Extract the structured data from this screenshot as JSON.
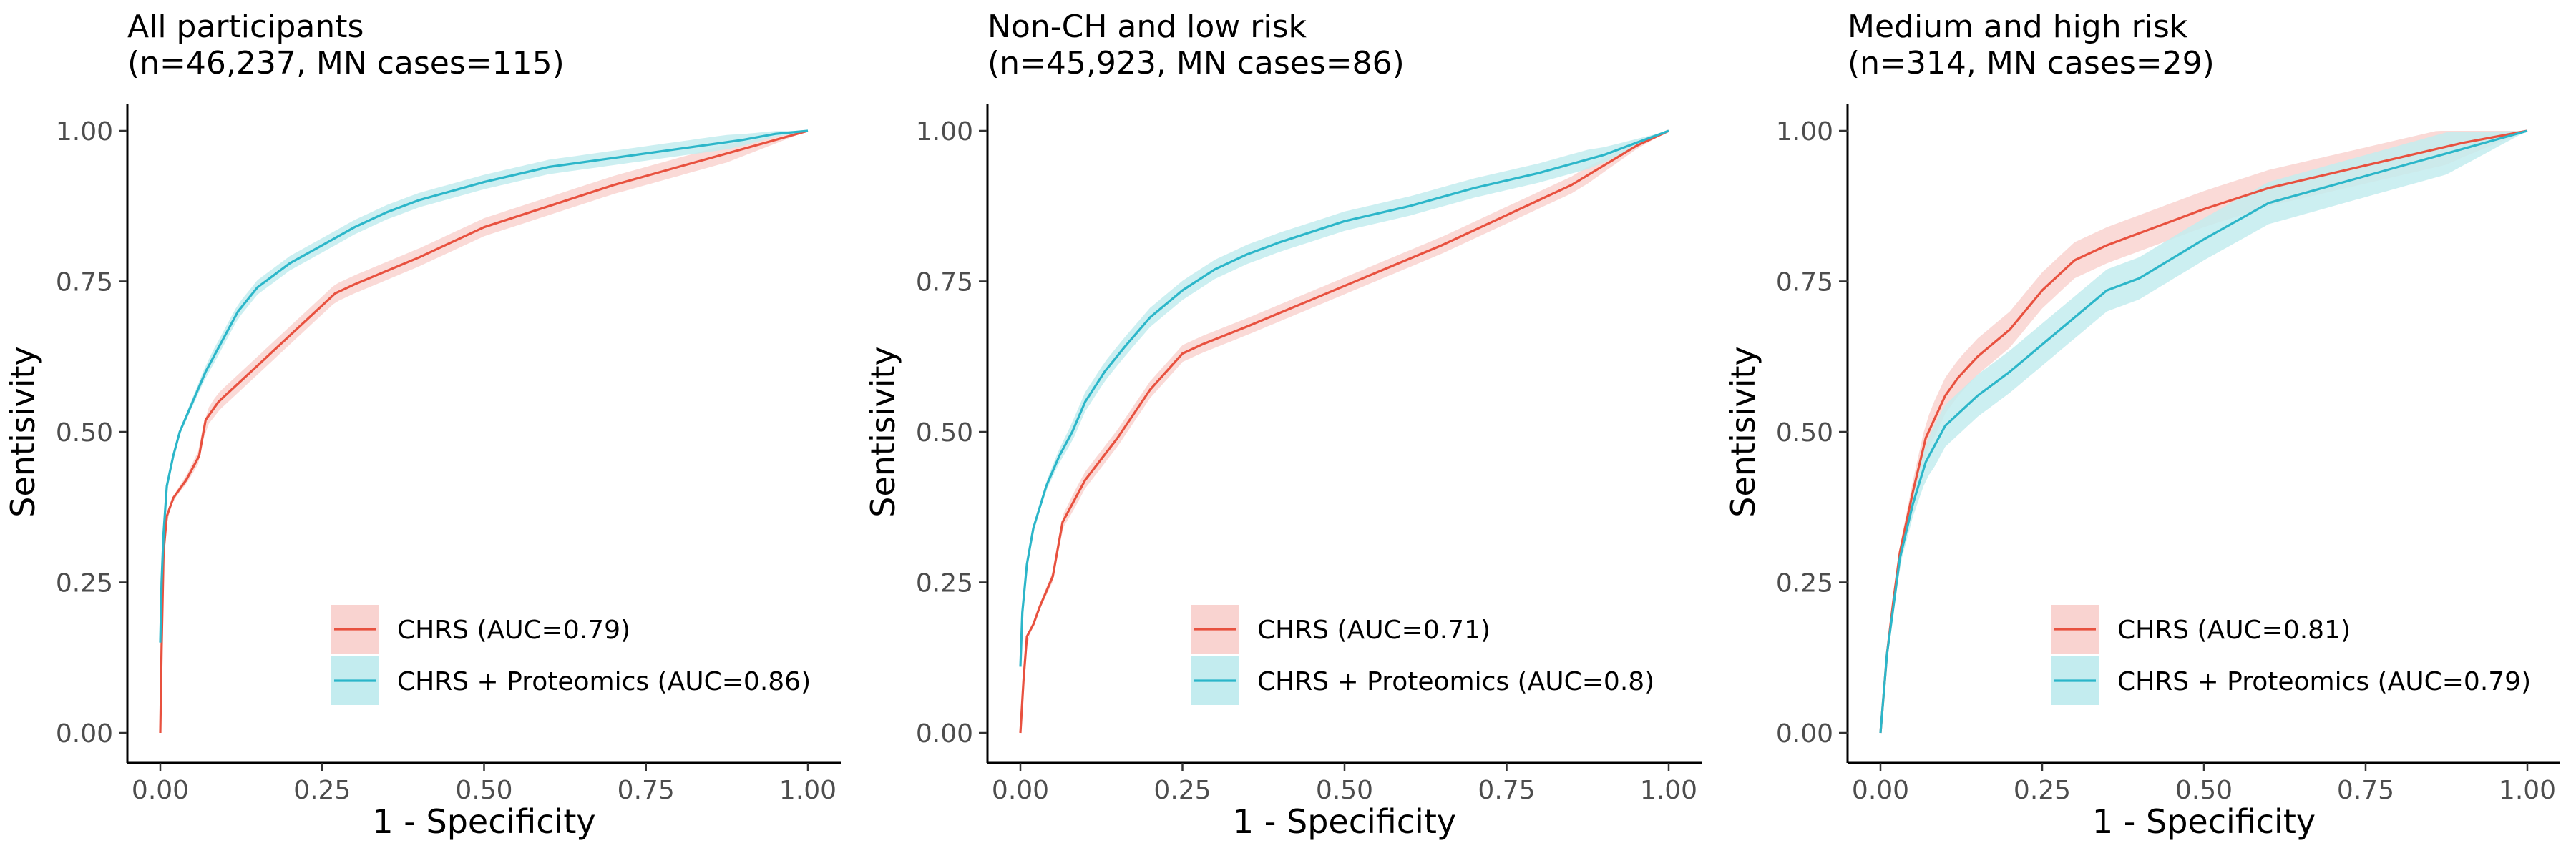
{
  "chart_data": [
    {
      "type": "line",
      "title": "All participants",
      "subtitle": "(n=46,237, MN cases=115)",
      "xlabel": "1 - Specificity",
      "ylabel": "Sentisivity",
      "xlim": [
        0,
        1
      ],
      "ylim": [
        0,
        1
      ],
      "x_ticks": [
        "0.00",
        "0.25",
        "0.50",
        "0.75",
        "1.00"
      ],
      "y_ticks": [
        "0.00",
        "0.25",
        "0.50",
        "0.75",
        "1.00"
      ],
      "grid": false,
      "legend_position": "bottom-right",
      "series": [
        {
          "name": "CHRS (AUC=0.79)",
          "color": "#e8513f",
          "band_color": "#f9d3d0",
          "x": [
            0,
            0.002,
            0.005,
            0.01,
            0.02,
            0.04,
            0.06,
            0.07,
            0.09,
            0.12,
            0.15,
            0.2,
            0.25,
            0.27,
            0.3,
            0.4,
            0.5,
            0.6,
            0.7,
            0.8,
            0.9,
            1.0
          ],
          "y": [
            0,
            0.14,
            0.3,
            0.36,
            0.39,
            0.42,
            0.46,
            0.52,
            0.55,
            0.58,
            0.61,
            0.66,
            0.71,
            0.73,
            0.745,
            0.79,
            0.84,
            0.875,
            0.91,
            0.94,
            0.97,
            1.0
          ],
          "band_halfwidth": 0.015
        },
        {
          "name": "CHRS + Proteomics (AUC=0.86)",
          "color": "#2cb6c9",
          "band_color": "#c3ecef",
          "x": [
            0,
            0.002,
            0.005,
            0.01,
            0.02,
            0.03,
            0.05,
            0.07,
            0.1,
            0.12,
            0.15,
            0.2,
            0.25,
            0.3,
            0.35,
            0.4,
            0.5,
            0.6,
            0.7,
            0.8,
            0.9,
            0.95,
            1.0
          ],
          "y": [
            0.15,
            0.25,
            0.33,
            0.41,
            0.46,
            0.5,
            0.55,
            0.6,
            0.66,
            0.7,
            0.74,
            0.78,
            0.81,
            0.84,
            0.865,
            0.885,
            0.915,
            0.94,
            0.955,
            0.97,
            0.985,
            0.995,
            1.0
          ],
          "band_halfwidth": 0.012
        }
      ]
    },
    {
      "type": "line",
      "title": "Non-CH and low risk",
      "subtitle": "(n=45,923, MN cases=86)",
      "xlabel": "1 - Specificity",
      "ylabel": "Sentisivity",
      "xlim": [
        0,
        1
      ],
      "ylim": [
        0,
        1
      ],
      "x_ticks": [
        "0.00",
        "0.25",
        "0.50",
        "0.75",
        "1.00"
      ],
      "y_ticks": [
        "0.00",
        "0.25",
        "0.50",
        "0.75",
        "1.00"
      ],
      "grid": false,
      "legend_position": "bottom-right",
      "series": [
        {
          "name": "CHRS (AUC=0.71)",
          "color": "#e8513f",
          "band_color": "#f9d3d0",
          "x": [
            0,
            0.005,
            0.01,
            0.02,
            0.03,
            0.05,
            0.065,
            0.08,
            0.1,
            0.15,
            0.2,
            0.25,
            0.28,
            0.35,
            0.45,
            0.55,
            0.65,
            0.75,
            0.85,
            0.95,
            1.0
          ],
          "y": [
            0,
            0.09,
            0.16,
            0.18,
            0.21,
            0.26,
            0.35,
            0.38,
            0.42,
            0.49,
            0.57,
            0.63,
            0.645,
            0.675,
            0.72,
            0.765,
            0.81,
            0.86,
            0.91,
            0.975,
            1.0
          ],
          "band_halfwidth": 0.014
        },
        {
          "name": "CHRS + Proteomics (AUC=0.8)",
          "color": "#2cb6c9",
          "band_color": "#c3ecef",
          "x": [
            0,
            0.003,
            0.01,
            0.02,
            0.04,
            0.06,
            0.08,
            0.1,
            0.13,
            0.16,
            0.2,
            0.25,
            0.3,
            0.35,
            0.4,
            0.5,
            0.6,
            0.7,
            0.8,
            0.9,
            0.95,
            1.0
          ],
          "y": [
            0.11,
            0.2,
            0.28,
            0.34,
            0.41,
            0.46,
            0.5,
            0.55,
            0.6,
            0.64,
            0.69,
            0.735,
            0.77,
            0.795,
            0.815,
            0.85,
            0.875,
            0.905,
            0.93,
            0.96,
            0.98,
            1.0
          ],
          "band_halfwidth": 0.016
        }
      ]
    },
    {
      "type": "line",
      "title": "Medium and high risk",
      "subtitle": "(n=314, MN cases=29)",
      "xlabel": "1 - Specificity",
      "ylabel": "Sentisivity",
      "xlim": [
        0,
        1
      ],
      "ylim": [
        0,
        1
      ],
      "x_ticks": [
        "0.00",
        "0.25",
        "0.50",
        "0.75",
        "1.00"
      ],
      "y_ticks": [
        "0.00",
        "0.25",
        "0.50",
        "0.75",
        "1.00"
      ],
      "grid": false,
      "legend_position": "bottom-right",
      "series": [
        {
          "name": "CHRS (AUC=0.81)",
          "color": "#e8513f",
          "band_color": "#f9d3d0",
          "x": [
            0,
            0.01,
            0.02,
            0.03,
            0.05,
            0.07,
            0.1,
            0.12,
            0.15,
            0.2,
            0.25,
            0.3,
            0.35,
            0.4,
            0.5,
            0.6,
            0.7,
            0.8,
            0.9,
            1.0
          ],
          "y": [
            0,
            0.13,
            0.22,
            0.3,
            0.4,
            0.49,
            0.56,
            0.59,
            0.625,
            0.67,
            0.735,
            0.785,
            0.81,
            0.83,
            0.87,
            0.905,
            0.93,
            0.955,
            0.98,
            1.0
          ],
          "band_halfwidth": 0.03
        },
        {
          "name": "CHRS + Proteomics (AUC=0.79)",
          "color": "#2cb6c9",
          "band_color": "#c3ecef",
          "x": [
            0,
            0.01,
            0.02,
            0.03,
            0.05,
            0.07,
            0.1,
            0.12,
            0.15,
            0.2,
            0.25,
            0.3,
            0.35,
            0.4,
            0.5,
            0.6,
            0.7,
            0.8,
            0.9,
            1.0
          ],
          "y": [
            0,
            0.13,
            0.21,
            0.29,
            0.38,
            0.45,
            0.51,
            0.53,
            0.56,
            0.6,
            0.645,
            0.69,
            0.735,
            0.755,
            0.82,
            0.88,
            0.91,
            0.94,
            0.97,
            1.0
          ],
          "band_halfwidth": 0.035
        }
      ]
    }
  ]
}
